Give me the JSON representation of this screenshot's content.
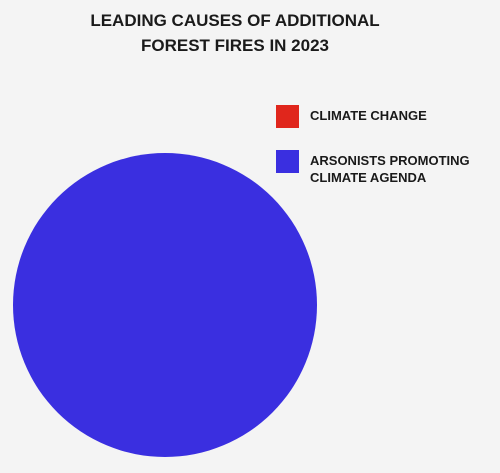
{
  "chart_data": {
    "type": "pie",
    "title": "LEADING CAUSES OF ADDITIONAL FOREST FIRES IN 2023",
    "categories": [
      "CLIMATE CHANGE",
      "ARSONISTS PROMOTING CLIMATE AGENDA"
    ],
    "values": [
      0,
      100
    ],
    "colors": [
      "#e0261c",
      "#3a2fe0"
    ]
  }
}
